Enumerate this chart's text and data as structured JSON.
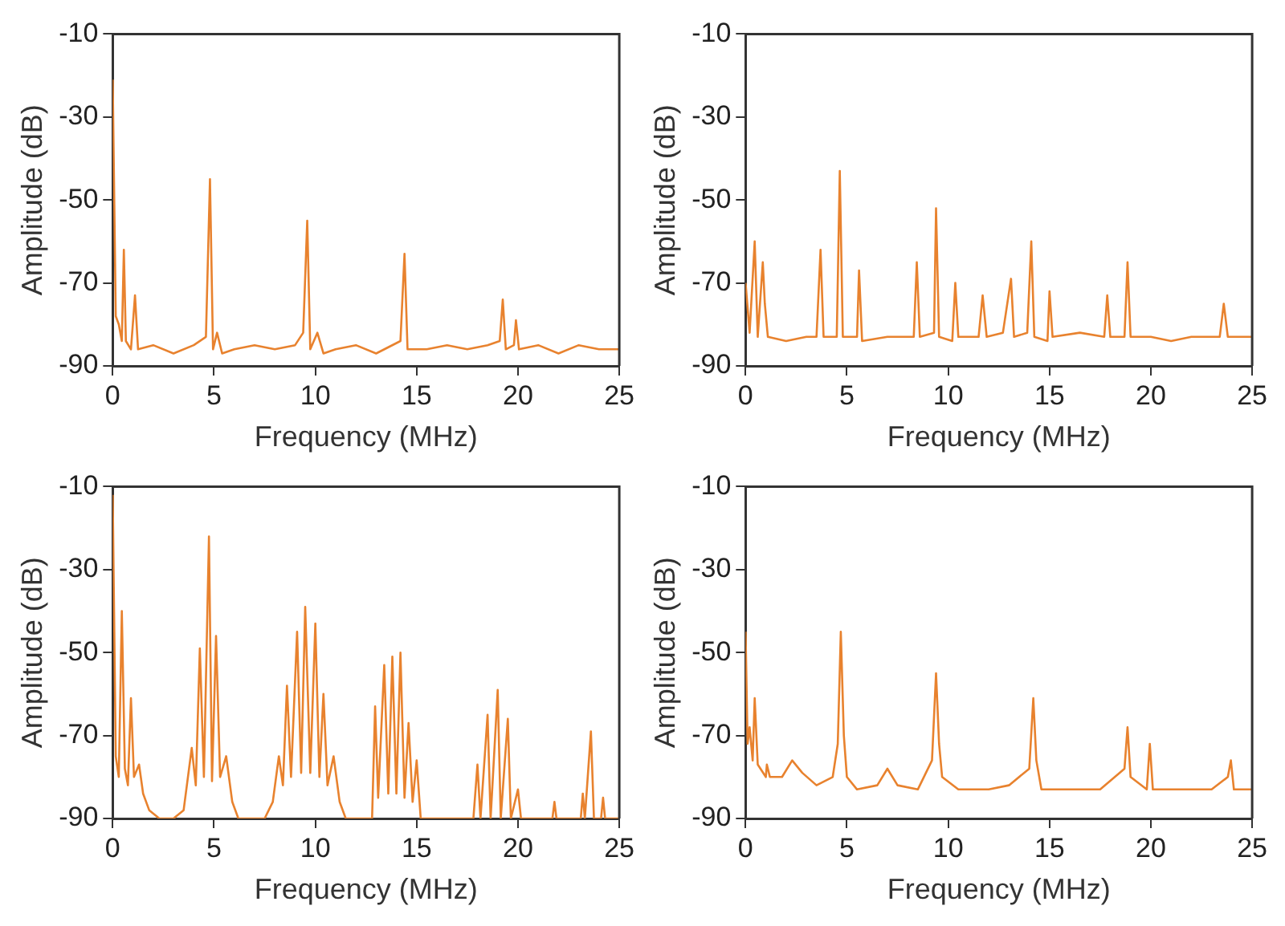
{
  "chart_data": [
    {
      "type": "line",
      "xlabel": "Frequency (MHz)",
      "ylabel": "Amplitude (dB)",
      "color": "#e8822e",
      "xlim": [
        0,
        25
      ],
      "ylim": [
        -90,
        -10
      ],
      "xticks": [
        0,
        5,
        10,
        15,
        20,
        25
      ],
      "yticks": [
        -90,
        -70,
        -50,
        -30,
        -10
      ],
      "grid": false,
      "legend": false,
      "marker": "none",
      "x": [
        0,
        0.15,
        0.3,
        0.45,
        0.55,
        0.65,
        0.9,
        1.1,
        1.25,
        2,
        3,
        4,
        4.6,
        4.8,
        4.95,
        5.15,
        5.4,
        6,
        7,
        8,
        9,
        9.4,
        9.6,
        9.75,
        10.1,
        10.4,
        11,
        12,
        13,
        14.2,
        14.4,
        14.55,
        15.5,
        16.5,
        17.5,
        18.5,
        19.1,
        19.25,
        19.4,
        19.8,
        19.9,
        20.05,
        21,
        22,
        23,
        24,
        25
      ],
      "values": [
        -21,
        -78,
        -80,
        -84,
        -62,
        -84,
        -86,
        -73,
        -86,
        -85,
        -87,
        -85,
        -83,
        -45,
        -86,
        -82,
        -87,
        -86,
        -85,
        -86,
        -85,
        -82,
        -55,
        -86,
        -82,
        -87,
        -86,
        -85,
        -87,
        -84,
        -63,
        -86,
        -86,
        -85,
        -86,
        -85,
        -84,
        -74,
        -86,
        -85,
        -79,
        -86,
        -85,
        -87,
        -85,
        -86,
        -86
      ]
    },
    {
      "type": "line",
      "xlabel": "Frequency (MHz)",
      "ylabel": "Amplitude (dB)",
      "color": "#e8822e",
      "xlim": [
        0,
        25
      ],
      "ylim": [
        -90,
        -10
      ],
      "xticks": [
        0,
        5,
        10,
        15,
        20,
        25
      ],
      "yticks": [
        -90,
        -70,
        -50,
        -30,
        -10
      ],
      "grid": false,
      "legend": false,
      "marker": "none",
      "x": [
        0,
        0.2,
        0.45,
        0.6,
        0.85,
        0.95,
        1.1,
        2,
        3,
        3.5,
        3.7,
        3.85,
        4.5,
        4.65,
        4.8,
        5.5,
        5.6,
        5.75,
        7,
        8.3,
        8.45,
        8.6,
        9.3,
        9.4,
        9.55,
        10.2,
        10.35,
        10.5,
        11.5,
        11.7,
        11.9,
        12.7,
        13.1,
        13.25,
        13.9,
        14.1,
        14.25,
        14.9,
        15,
        15.15,
        16.5,
        17.7,
        17.85,
        18,
        18.7,
        18.85,
        19,
        20,
        21,
        22,
        23.4,
        23.6,
        23.8,
        25
      ],
      "values": [
        -70,
        -82,
        -60,
        -83,
        -65,
        -75,
        -83,
        -84,
        -83,
        -83,
        -62,
        -83,
        -83,
        -43,
        -83,
        -83,
        -67,
        -84,
        -83,
        -83,
        -65,
        -83,
        -82,
        -52,
        -83,
        -84,
        -70,
        -83,
        -83,
        -73,
        -83,
        -82,
        -69,
        -83,
        -82,
        -60,
        -83,
        -84,
        -72,
        -83,
        -82,
        -83,
        -73,
        -83,
        -83,
        -65,
        -83,
        -83,
        -84,
        -83,
        -83,
        -75,
        -83,
        -83
      ]
    },
    {
      "type": "line",
      "xlabel": "Frequency (MHz)",
      "ylabel": "Amplitude (dB)",
      "color": "#e8822e",
      "xlim": [
        0,
        25
      ],
      "ylim": [
        -90,
        -10
      ],
      "xticks": [
        0,
        5,
        10,
        15,
        20,
        25
      ],
      "yticks": [
        -90,
        -70,
        -50,
        -30,
        -10
      ],
      "grid": false,
      "legend": false,
      "marker": "none",
      "x": [
        0,
        0.15,
        0.3,
        0.45,
        0.6,
        0.75,
        0.9,
        1.05,
        1.3,
        1.5,
        1.8,
        2.3,
        3,
        3.5,
        3.9,
        4.1,
        4.3,
        4.5,
        4.75,
        4.9,
        5.1,
        5.3,
        5.6,
        5.9,
        6.2,
        7.5,
        7.9,
        8.2,
        8.4,
        8.6,
        8.8,
        9.1,
        9.3,
        9.5,
        9.75,
        10,
        10.2,
        10.4,
        10.6,
        10.9,
        11.2,
        11.5,
        12.8,
        12.95,
        13.1,
        13.4,
        13.6,
        13.8,
        14,
        14.2,
        14.4,
        14.6,
        14.8,
        15,
        15.2,
        17.8,
        18,
        18.15,
        18.5,
        18.65,
        19,
        19.15,
        19.5,
        19.65,
        20,
        20.15,
        21.7,
        21.8,
        21.9,
        23.1,
        23.2,
        23.3,
        23.6,
        23.75,
        24.1,
        24.2,
        24.3,
        25
      ],
      "values": [
        -12,
        -75,
        -80,
        -40,
        -78,
        -82,
        -61,
        -80,
        -77,
        -84,
        -88,
        -90,
        -90,
        -88,
        -73,
        -82,
        -49,
        -80,
        -22,
        -81,
        -46,
        -80,
        -75,
        -86,
        -90,
        -90,
        -86,
        -75,
        -82,
        -58,
        -80,
        -45,
        -79,
        -39,
        -79,
        -43,
        -80,
        -60,
        -82,
        -75,
        -86,
        -90,
        -90,
        -63,
        -85,
        -53,
        -84,
        -51,
        -84,
        -50,
        -85,
        -67,
        -86,
        -76,
        -90,
        -90,
        -77,
        -90,
        -65,
        -90,
        -59,
        -90,
        -66,
        -90,
        -83,
        -90,
        -90,
        -86,
        -90,
        -90,
        -84,
        -90,
        -69,
        -90,
        -90,
        -85,
        -90,
        -90
      ]
    },
    {
      "type": "line",
      "xlabel": "Frequency (MHz)",
      "ylabel": "Amplitude (dB)",
      "color": "#e8822e",
      "xlim": [
        0,
        25
      ],
      "ylim": [
        -90,
        -10
      ],
      "xticks": [
        0,
        5,
        10,
        15,
        20,
        25
      ],
      "yticks": [
        -90,
        -70,
        -50,
        -30,
        -10
      ],
      "grid": false,
      "legend": false,
      "marker": "none",
      "x": [
        0,
        0.1,
        0.2,
        0.35,
        0.45,
        0.6,
        1,
        1.05,
        1.2,
        1.8,
        2.3,
        2.8,
        3.5,
        4.3,
        4.55,
        4.7,
        4.85,
        5,
        5.5,
        6.5,
        7,
        7.5,
        8.5,
        9.2,
        9.4,
        9.55,
        9.7,
        10.5,
        12,
        13,
        14,
        14.2,
        14.35,
        14.6,
        16,
        17.5,
        18.7,
        18.85,
        19,
        19.8,
        19.95,
        20.1,
        21.5,
        23,
        23.8,
        23.95,
        24.1,
        25
      ],
      "values": [
        -45,
        -72,
        -68,
        -76,
        -61,
        -77,
        -80,
        -77,
        -80,
        -80,
        -76,
        -79,
        -82,
        -80,
        -72,
        -45,
        -70,
        -80,
        -83,
        -82,
        -78,
        -82,
        -83,
        -76,
        -55,
        -72,
        -80,
        -83,
        -83,
        -82,
        -78,
        -61,
        -76,
        -83,
        -83,
        -83,
        -78,
        -68,
        -80,
        -83,
        -72,
        -83,
        -83,
        -83,
        -80,
        -76,
        -83,
        -83
      ]
    }
  ]
}
